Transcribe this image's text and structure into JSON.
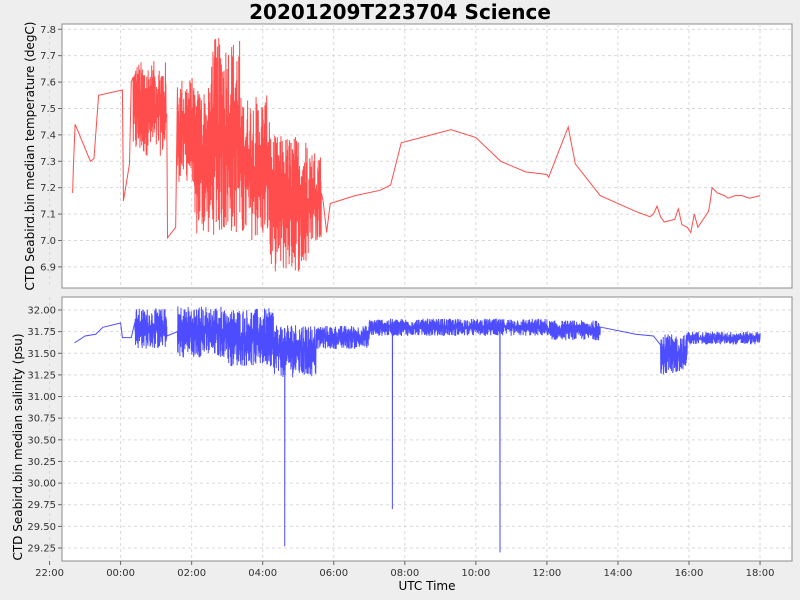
{
  "title": "20201209T223704 Science",
  "xlabel": "UTC Time",
  "colors": {
    "temperature": "#ff4d4d",
    "salinity": "#4d4dff"
  },
  "chart_data": [
    {
      "type": "line",
      "name": "temperature",
      "ylabel": "CTD Seabird.bin median temperature (degC)",
      "xlim_hours": [
        -1.65,
        18.9
      ],
      "ylim": [
        6.82,
        7.82
      ],
      "x_ticks": [
        "22:00",
        "00:00",
        "02:00",
        "04:00",
        "06:00",
        "08:00",
        "10:00",
        "12:00",
        "14:00",
        "16:00",
        "18:00"
      ],
      "y_ticks": [
        "6.9",
        "7.0",
        "7.1",
        "7.2",
        "7.3",
        "7.4",
        "7.5",
        "7.6",
        "7.7",
        "7.8"
      ],
      "points": [
        [
          -1.35,
          7.18
        ],
        [
          -1.33,
          7.28
        ],
        [
          -1.28,
          7.44
        ],
        [
          -0.85,
          7.3
        ],
        [
          -0.75,
          7.31
        ],
        [
          -0.62,
          7.55
        ],
        [
          0.05,
          7.57
        ],
        [
          0.08,
          7.15
        ],
        [
          0.25,
          7.29
        ],
        [
          0.3,
          7.6
        ],
        [
          0.5,
          7.55
        ],
        [
          1.3,
          7.48
        ],
        [
          1.32,
          7.01
        ],
        [
          1.55,
          7.05
        ],
        [
          1.6,
          7.58
        ],
        [
          2.0,
          7.5
        ],
        [
          2.5,
          7.15
        ],
        [
          3.3,
          7.4
        ],
        [
          4.3,
          7.05
        ],
        [
          4.9,
          7.1
        ],
        [
          5.25,
          7.35
        ],
        [
          5.7,
          7.15
        ],
        [
          5.8,
          7.03
        ],
        [
          5.9,
          7.14
        ],
        [
          6.6,
          7.17
        ],
        [
          7.3,
          7.19
        ],
        [
          7.6,
          7.21
        ],
        [
          7.9,
          7.37
        ],
        [
          9.3,
          7.42
        ],
        [
          10.0,
          7.39
        ],
        [
          10.7,
          7.3
        ],
        [
          11.4,
          7.26
        ],
        [
          12.0,
          7.25
        ],
        [
          12.05,
          7.24
        ],
        [
          12.6,
          7.43
        ],
        [
          12.8,
          7.29
        ],
        [
          13.5,
          7.17
        ],
        [
          14.5,
          7.11
        ],
        [
          14.9,
          7.09
        ],
        [
          15.0,
          7.1
        ],
        [
          15.1,
          7.13
        ],
        [
          15.2,
          7.09
        ],
        [
          15.3,
          7.07
        ],
        [
          15.6,
          7.08
        ],
        [
          15.7,
          7.12
        ],
        [
          15.8,
          7.06
        ],
        [
          15.95,
          7.05
        ],
        [
          16.05,
          7.03
        ],
        [
          16.15,
          7.1
        ],
        [
          16.25,
          7.05
        ],
        [
          16.4,
          7.08
        ],
        [
          16.55,
          7.11
        ],
        [
          16.6,
          7.15
        ],
        [
          16.65,
          7.2
        ],
        [
          16.8,
          7.18
        ],
        [
          17.0,
          7.17
        ],
        [
          17.1,
          7.16
        ],
        [
          17.3,
          7.17
        ],
        [
          17.5,
          7.17
        ],
        [
          17.7,
          7.16
        ],
        [
          18.0,
          7.17
        ]
      ],
      "noisy_segments": [
        {
          "x_range": [
            0.35,
            1.28
          ],
          "y_range": [
            7.32,
            7.68
          ]
        },
        {
          "x_range": [
            1.6,
            2.05
          ],
          "y_range": [
            7.22,
            7.62
          ]
        },
        {
          "x_range": [
            2.05,
            2.55
          ],
          "y_range": [
            7.02,
            7.58
          ]
        },
        {
          "x_range": [
            2.55,
            3.35
          ],
          "y_range": [
            7.02,
            7.77
          ]
        },
        {
          "x_range": [
            3.35,
            4.2
          ],
          "y_range": [
            7.0,
            7.55
          ]
        },
        {
          "x_range": [
            4.2,
            5.3
          ],
          "y_range": [
            6.88,
            7.4
          ]
        },
        {
          "x_range": [
            5.3,
            5.65
          ],
          "y_range": [
            7.0,
            7.35
          ]
        }
      ]
    },
    {
      "type": "line",
      "name": "salinity",
      "ylabel": "CTD Seabird.bin median salinity (psu)",
      "xlim_hours": [
        -1.65,
        18.9
      ],
      "ylim": [
        29.1,
        32.15
      ],
      "x_ticks": [
        "22:00",
        "00:00",
        "02:00",
        "04:00",
        "06:00",
        "08:00",
        "10:00",
        "12:00",
        "14:00",
        "16:00",
        "18:00"
      ],
      "y_ticks": [
        "29.25",
        "29.50",
        "29.75",
        "30.00",
        "30.25",
        "30.50",
        "30.75",
        "31.00",
        "31.25",
        "31.50",
        "31.75",
        "32.00"
      ],
      "points": [
        [
          -1.3,
          31.62
        ],
        [
          -1.0,
          31.7
        ],
        [
          -0.7,
          31.72
        ],
        [
          -0.5,
          31.8
        ],
        [
          0.0,
          31.85
        ],
        [
          0.05,
          31.68
        ],
        [
          0.3,
          31.68
        ],
        [
          0.5,
          31.72
        ],
        [
          1.2,
          31.72
        ],
        [
          1.3,
          31.7
        ],
        [
          1.6,
          31.75
        ],
        [
          2.5,
          31.72
        ],
        [
          3.5,
          31.65
        ],
        [
          4.5,
          31.58
        ],
        [
          5.0,
          31.6
        ],
        [
          5.5,
          31.65
        ],
        [
          6.0,
          31.72
        ],
        [
          7.0,
          31.75
        ],
        [
          8.0,
          31.8
        ],
        [
          9.0,
          31.82
        ],
        [
          10.0,
          31.85
        ],
        [
          11.0,
          31.8
        ],
        [
          12.0,
          31.78
        ],
        [
          13.0,
          31.75
        ],
        [
          13.5,
          31.75
        ],
        [
          14.5,
          31.72
        ],
        [
          15.0,
          31.7
        ],
        [
          15.5,
          31.62
        ],
        [
          16.0,
          31.68
        ],
        [
          16.5,
          31.68
        ],
        [
          17.0,
          31.65
        ],
        [
          17.5,
          31.68
        ],
        [
          18.0,
          31.7
        ]
      ],
      "spikes": [
        {
          "x": 4.62,
          "from": 31.55,
          "to": 29.27
        },
        {
          "x": 7.65,
          "from": 31.7,
          "to": 29.7
        },
        {
          "x": 10.68,
          "from": 31.75,
          "to": 29.2
        }
      ],
      "noisy_segments": [
        {
          "x_range": [
            0.4,
            1.3
          ],
          "y_range": [
            31.55,
            32.02
          ]
        },
        {
          "x_range": [
            1.6,
            3.0
          ],
          "y_range": [
            31.45,
            32.05
          ]
        },
        {
          "x_range": [
            3.0,
            4.3
          ],
          "y_range": [
            31.35,
            32.02
          ]
        },
        {
          "x_range": [
            4.3,
            5.5
          ],
          "y_range": [
            31.22,
            31.85
          ]
        },
        {
          "x_range": [
            5.5,
            7.0
          ],
          "y_range": [
            31.55,
            31.82
          ]
        },
        {
          "x_range": [
            7.0,
            12.0
          ],
          "y_range": [
            31.7,
            31.9
          ]
        },
        {
          "x_range": [
            12.0,
            13.5
          ],
          "y_range": [
            31.65,
            31.88
          ]
        },
        {
          "x_range": [
            15.2,
            15.95
          ],
          "y_range": [
            31.25,
            31.72
          ]
        },
        {
          "x_range": [
            15.95,
            18.0
          ],
          "y_range": [
            31.6,
            31.75
          ]
        }
      ]
    }
  ]
}
